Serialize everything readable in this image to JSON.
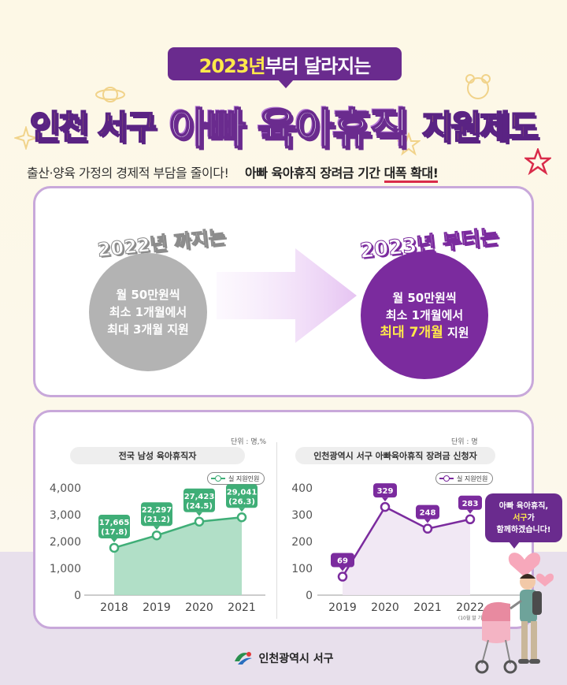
{
  "header": {
    "banner_year": "2023년",
    "banner_rest": "부터 달라지는",
    "title_left": "인천 서구",
    "title_mid": "아빠 육아휴직",
    "title_right": "지원제도",
    "subtitle_left": "출산·양육 가정의 경제적 부담을 줄이다!",
    "subtitle_highlight_a": "아빠 육아휴직 장려금 기간 ",
    "subtitle_highlight_b": "대폭 확대!"
  },
  "comparison": {
    "before_tag": "2022년 까지는",
    "before_lines": [
      "월 50만원씩",
      "최소 1개월에서",
      "최대 3개월 지원"
    ],
    "after_tag": "2023년 부터는",
    "after_line1": "월 50만원씩",
    "after_line2": "최소 1개월에서",
    "after_highlight": "최대 7개월",
    "after_suffix": " 지원"
  },
  "colors": {
    "purple": "#7b2b9e",
    "dark_purple": "#6a2b8e",
    "green": "#3fae77",
    "green_fill": "#a9dcc1",
    "gray": "#b3b3b3",
    "yellow": "#ffe94a"
  },
  "chart_data": [
    {
      "type": "area",
      "title": "전국 남성 육아휴직자",
      "unit": "단위 : 명,%",
      "legend": "실 지원인원",
      "categories": [
        "2018",
        "2019",
        "2020",
        "2021"
      ],
      "values": [
        17665,
        22297,
        27423,
        29041
      ],
      "labels": [
        [
          "17,665",
          "(17.8)"
        ],
        [
          "22,297",
          "(21.2)"
        ],
        [
          "27,423",
          "(24.5)"
        ],
        [
          "29,041",
          "(26.3)"
        ]
      ],
      "ylim": [
        0,
        4000
      ],
      "yticks": [
        "4,000",
        "3,000",
        "2,000",
        "1,000",
        "0"
      ],
      "plot_scale_note": "values plotted against tick labels as in source (÷10)"
    },
    {
      "type": "line",
      "title": "인천광역시 서구 아빠육아휴직 장려금 신청자",
      "unit": "단위 : 명",
      "legend": "실 지원인원",
      "categories": [
        "2019",
        "2020",
        "2021",
        "2022"
      ],
      "values": [
        69,
        329,
        248,
        283
      ],
      "labels": [
        "69",
        "329",
        "248",
        "283"
      ],
      "ylim": [
        0,
        400
      ],
      "yticks": [
        "400",
        "300",
        "200",
        "100",
        "0"
      ],
      "footnote": "(10월 말 기준)"
    }
  ],
  "bubble": {
    "line1": "아빠 육아휴직,",
    "line2a": "서구",
    "line2b": "가",
    "line3": "함께하겠습니다!"
  },
  "footer": {
    "org": "인천광역시 서구",
    "logo": "incheon-seogu-logo"
  }
}
